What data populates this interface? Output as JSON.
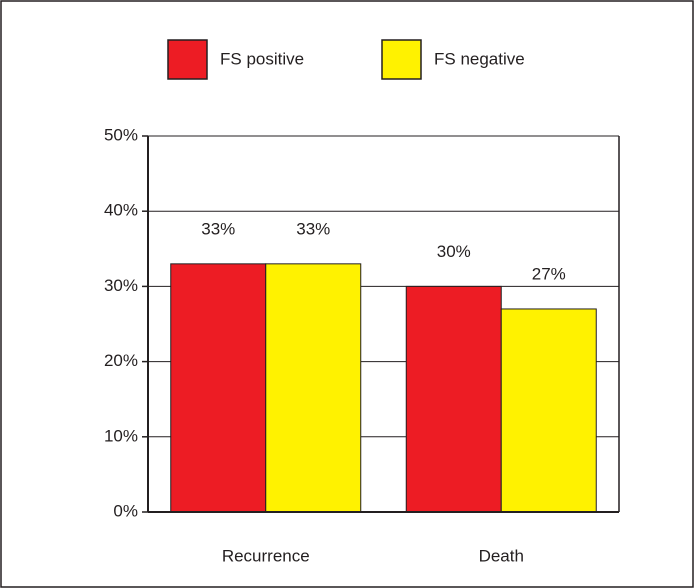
{
  "chart_data": {
    "type": "bar",
    "categories": [
      "Recurrence",
      "Death"
    ],
    "series": [
      {
        "name": "FS positive",
        "color": "#ed1c24",
        "values": [
          33,
          30
        ],
        "value_labels": [
          "33%",
          "30%"
        ]
      },
      {
        "name": "FS negative",
        "color": "#fff200",
        "values": [
          33,
          27
        ],
        "value_labels": [
          "33%",
          "27%"
        ]
      }
    ],
    "ylim": [
      0,
      50
    ],
    "yticks": [
      {
        "value": 0,
        "label": "0%"
      },
      {
        "value": 10,
        "label": "10%"
      },
      {
        "value": 20,
        "label": "20%"
      },
      {
        "value": 30,
        "label": "30%"
      },
      {
        "value": 40,
        "label": "40%"
      },
      {
        "value": 50,
        "label": "50%"
      }
    ],
    "grid": true,
    "legend": "top"
  }
}
